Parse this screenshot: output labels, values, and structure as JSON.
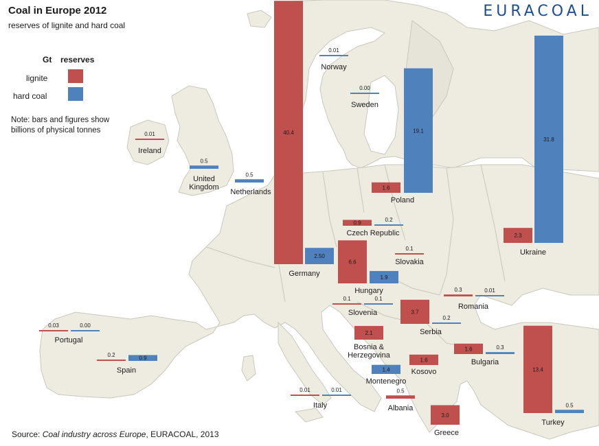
{
  "title": "Coal in Europe 2012",
  "subtitle": "reserves of lignite and hard coal",
  "brand": "EURACOAL",
  "legend": {
    "unit": "Gt",
    "header": "reserves",
    "lignite_label": "lignite",
    "hardcoal_label": "hard coal"
  },
  "note": "Note: bars and figures show billions of physical tonnes",
  "source": {
    "prefix": "Source: ",
    "title": "Coal industry across Europe",
    "suffix": ", EURACOAL, 2013"
  },
  "colors": {
    "lignite": "#c0504d",
    "hard_coal": "#4f81bd",
    "map_land": "#eeece1",
    "map_border": "#c9c7bc",
    "sea": "#ffffff"
  },
  "chart_data": {
    "type": "bar",
    "series": [
      {
        "name": "lignite",
        "color": "#c0504d"
      },
      {
        "name": "hard coal",
        "color": "#4f81bd"
      }
    ],
    "countries": [
      {
        "name": "Germany",
        "lignite": 40.4,
        "lignite_label": "40.4",
        "hard_coal": 2.5,
        "hard_coal_label": "2.50"
      },
      {
        "name": "Ukraine",
        "lignite": 2.3,
        "lignite_label": "2.3",
        "hard_coal": 31.8,
        "hard_coal_label": "31.8"
      },
      {
        "name": "Poland",
        "lignite": 1.6,
        "lignite_label": "1.6",
        "hard_coal": 19.1,
        "hard_coal_label": "19.1"
      },
      {
        "name": "Turkey",
        "lignite": 13.4,
        "lignite_label": "13.4",
        "hard_coal": 0.5,
        "hard_coal_label": "0.5"
      },
      {
        "name": "Hungary",
        "lignite": 6.6,
        "lignite_label": "6.6",
        "hard_coal": 1.9,
        "hard_coal_label": "1.9"
      },
      {
        "name": "Serbia",
        "lignite": 3.7,
        "lignite_label": "3.7",
        "hard_coal": 0.2,
        "hard_coal_label": "0.2"
      },
      {
        "name": "Greece",
        "lignite": 3.0,
        "lignite_label": "3.0",
        "hard_coal": null,
        "hard_coal_label": null
      },
      {
        "name": "Bosnia & Herzegovina",
        "lignite": 2.1,
        "lignite_label": "2.1",
        "hard_coal": null,
        "hard_coal_label": null
      },
      {
        "name": "Kosovo",
        "lignite": 1.6,
        "lignite_label": "1.6",
        "hard_coal": null,
        "hard_coal_label": null
      },
      {
        "name": "Bulgaria",
        "lignite": 1.6,
        "lignite_label": "1.6",
        "hard_coal": 0.3,
        "hard_coal_label": "0.3"
      },
      {
        "name": "Montenegro",
        "lignite": null,
        "lignite_label": null,
        "hard_coal": 1.4,
        "hard_coal_label": "1.4"
      },
      {
        "name": "Czech Republic",
        "lignite": 0.9,
        "lignite_label": "0.9",
        "hard_coal": 0.2,
        "hard_coal_label": "0.2"
      },
      {
        "name": "Spain",
        "lignite": 0.2,
        "lignite_label": "0.2",
        "hard_coal": 0.9,
        "hard_coal_label": "0.9"
      },
      {
        "name": "United Kingdom",
        "lignite": null,
        "lignite_label": null,
        "hard_coal": 0.5,
        "hard_coal_label": "0.5"
      },
      {
        "name": "Netherlands",
        "lignite": null,
        "lignite_label": null,
        "hard_coal": 0.5,
        "hard_coal_label": "0.5"
      },
      {
        "name": "Albania",
        "lignite": 0.5,
        "lignite_label": "0.5",
        "hard_coal": null,
        "hard_coal_label": null
      },
      {
        "name": "Romania",
        "lignite": 0.3,
        "lignite_label": "0.3",
        "hard_coal": 0.01,
        "hard_coal_label": "0.01"
      },
      {
        "name": "Slovenia",
        "lignite": 0.1,
        "lignite_label": "0.1",
        "hard_coal": 0.1,
        "hard_coal_label": "0.1"
      },
      {
        "name": "Slovakia",
        "lignite": 0.1,
        "lignite_label": "0.1",
        "hard_coal": null,
        "hard_coal_label": null
      },
      {
        "name": "Portugal",
        "lignite": 0.03,
        "lignite_label": "0.03",
        "hard_coal": 0.0,
        "hard_coal_label": "0.00"
      },
      {
        "name": "Italy",
        "lignite": 0.01,
        "lignite_label": "0.01",
        "hard_coal": 0.01,
        "hard_coal_label": "0.01"
      },
      {
        "name": "Ireland",
        "lignite": 0.01,
        "lignite_label": "0.01",
        "hard_coal": null,
        "hard_coal_label": null
      },
      {
        "name": "Norway",
        "lignite": null,
        "lignite_label": null,
        "hard_coal": 0.01,
        "hard_coal_label": "0.01"
      },
      {
        "name": "Sweden",
        "lignite": null,
        "lignite_label": null,
        "hard_coal": 0.0,
        "hard_coal_label": "0.00"
      }
    ]
  }
}
